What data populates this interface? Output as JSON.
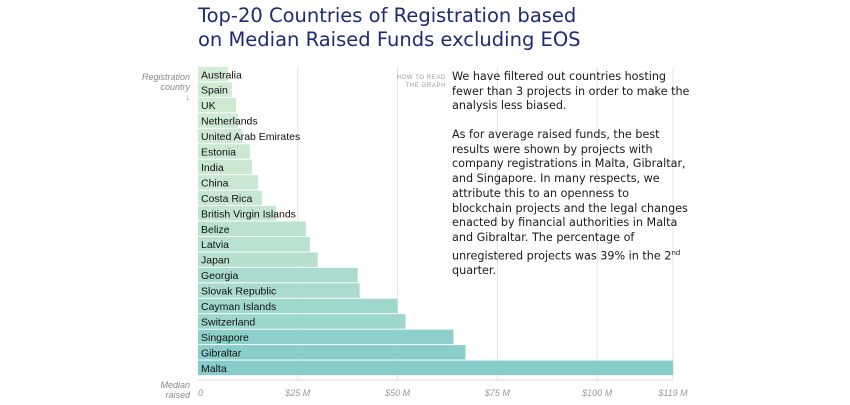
{
  "title_lines": [
    "Top-20 Countries of Registration based",
    "on Median Raised Funds excluding EOS"
  ],
  "y_axis_label_lines": [
    "Registration",
    "country",
    "↓"
  ],
  "x_axis_label_lines": [
    "Median",
    "raised"
  ],
  "how_to_read_lines": [
    "HOW TO READ",
    "THE GRAPH"
  ],
  "paragraph1": "We have filtered out countries hosting fewer than 3 projects in order to make the analysis less biased.",
  "paragraph2": "As for average raised funds, the best results were shown by projects with company registrations in Malta, Gibraltar, and Singapore. In many respects, we attribute this to an openness to blockchain projects and the legal changes enacted by financial authorities in Malta and Gibraltar. The percentage of unregistered projects was 39% in the 2nd quarter.",
  "chart_data": {
    "type": "bar",
    "orientation": "horizontal",
    "title": "Top-20 Countries of Registration based on Median Raised Funds excluding EOS",
    "ylabel": "Registration country",
    "xlabel": "Median raised",
    "xlim": [
      0,
      119
    ],
    "units": "$M",
    "ticks": [
      {
        "value": 0,
        "label": "0"
      },
      {
        "value": 25,
        "label": "$25 M"
      },
      {
        "value": 50,
        "label": "$50 M"
      },
      {
        "value": 75,
        "label": "$75 M"
      },
      {
        "value": 100,
        "label": "$100 M"
      },
      {
        "value": 119,
        "label": "$119 M"
      }
    ],
    "categories": [
      "Australia",
      "Spain",
      "UK",
      "Netherlands",
      "United Arab Emirates",
      "Estonia",
      "India",
      "China",
      "Costa Rica",
      "British Virgin Islands",
      "Belize",
      "Latvia",
      "Japan",
      "Georgia",
      "Slovak Republic",
      "Cayman Islands",
      "Switzerland",
      "Singapore",
      "Gibraltar",
      "Malta"
    ],
    "values": [
      7.5,
      8.5,
      9.5,
      10,
      11,
      13,
      13.5,
      15,
      16,
      19.5,
      27,
      28,
      30,
      40,
      40.5,
      50,
      52,
      64,
      67,
      119
    ],
    "colors": {
      "low": "#d5ecd2",
      "high": "#86cdca"
    }
  }
}
